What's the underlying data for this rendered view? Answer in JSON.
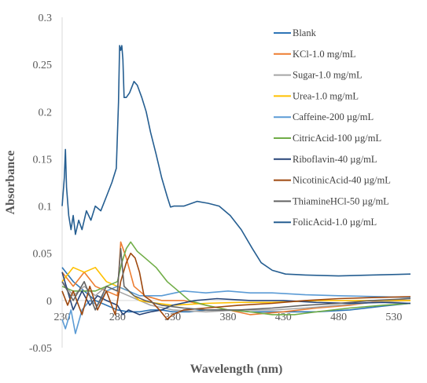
{
  "chart_data": {
    "type": "line",
    "title": "",
    "xlabel": "Wavelength (nm)",
    "ylabel": "Absorbance",
    "xlim": [
      230,
      545
    ],
    "ylim": [
      -0.05,
      0.3
    ],
    "x_ticks": [
      "230",
      "280",
      "330",
      "380",
      "430",
      "480",
      "530"
    ],
    "y_ticks": [
      "-0.05",
      "0",
      "0.05",
      "0.1",
      "0.15",
      "0.2",
      "0.25",
      "0.3"
    ],
    "grid": false,
    "legend_position": "right",
    "series": [
      {
        "name": "Blank",
        "color": "#2E75B6",
        "points": [
          [
            230,
            0.035
          ],
          [
            240,
            0.02
          ],
          [
            250,
            0.01
          ],
          [
            260,
            0.0
          ],
          [
            270,
            -0.005
          ],
          [
            280,
            -0.01
          ],
          [
            290,
            -0.012
          ],
          [
            300,
            -0.012
          ],
          [
            310,
            -0.01
          ],
          [
            320,
            -0.01
          ],
          [
            330,
            -0.012
          ],
          [
            345,
            -0.012
          ],
          [
            360,
            -0.01
          ],
          [
            380,
            -0.01
          ],
          [
            400,
            -0.012
          ],
          [
            430,
            -0.012
          ],
          [
            460,
            -0.012
          ],
          [
            490,
            -0.01
          ],
          [
            520,
            -0.006
          ],
          [
            545,
            -0.003
          ]
        ]
      },
      {
        "name": "KCl-1.0 mg/mL",
        "color": "#ED7D31",
        "points": [
          [
            230,
            0.03
          ],
          [
            240,
            0.015
          ],
          [
            250,
            0.03
          ],
          [
            260,
            0.015
          ],
          [
            270,
            0.01
          ],
          [
            280,
            0.005
          ],
          [
            283,
            0.062
          ],
          [
            288,
            0.045
          ],
          [
            295,
            0.015
          ],
          [
            305,
            0.005
          ],
          [
            320,
            0.0
          ],
          [
            340,
            0.0
          ],
          [
            360,
            -0.005
          ],
          [
            380,
            -0.01
          ],
          [
            400,
            -0.015
          ],
          [
            430,
            -0.012
          ],
          [
            460,
            -0.008
          ],
          [
            490,
            -0.005
          ],
          [
            520,
            0.0
          ],
          [
            545,
            0.002
          ]
        ]
      },
      {
        "name": "Sugar-1.0 mg/mL",
        "color": "#A5A5A5",
        "points": [
          [
            230,
            0.02
          ],
          [
            240,
            0.005
          ],
          [
            250,
            0.015
          ],
          [
            260,
            0.005
          ],
          [
            270,
            0.015
          ],
          [
            280,
            0.01
          ],
          [
            290,
            0.005
          ],
          [
            300,
            0.0
          ],
          [
            310,
            -0.005
          ],
          [
            330,
            -0.01
          ],
          [
            360,
            -0.012
          ],
          [
            390,
            -0.01
          ],
          [
            420,
            -0.01
          ],
          [
            450,
            -0.008
          ],
          [
            480,
            -0.005
          ],
          [
            510,
            -0.002
          ],
          [
            545,
            0.0
          ]
        ]
      },
      {
        "name": "Urea-1.0 mg/mL",
        "color": "#FFC000",
        "points": [
          [
            230,
            0.02
          ],
          [
            240,
            0.035
          ],
          [
            250,
            0.03
          ],
          [
            260,
            0.035
          ],
          [
            270,
            0.02
          ],
          [
            280,
            0.015
          ],
          [
            290,
            0.01
          ],
          [
            300,
            0.0
          ],
          [
            310,
            -0.002
          ],
          [
            330,
            -0.005
          ],
          [
            360,
            -0.003
          ],
          [
            390,
            -0.002
          ],
          [
            420,
            -0.002
          ],
          [
            460,
            0.0
          ],
          [
            500,
            0.0
          ],
          [
            545,
            0.0
          ]
        ]
      },
      {
        "name": "Caffeine-200 µg/mL",
        "color": "#5B9BD5",
        "points": [
          [
            230,
            -0.02
          ],
          [
            233,
            -0.03
          ],
          [
            238,
            -0.01
          ],
          [
            242,
            -0.035
          ],
          [
            248,
            -0.01
          ],
          [
            255,
            0.0
          ],
          [
            262,
            -0.005
          ],
          [
            270,
            0.01
          ],
          [
            280,
            0.015
          ],
          [
            290,
            0.01
          ],
          [
            300,
            0.005
          ],
          [
            320,
            0.005
          ],
          [
            340,
            0.01
          ],
          [
            360,
            0.008
          ],
          [
            380,
            0.01
          ],
          [
            400,
            0.008
          ],
          [
            420,
            0.008
          ],
          [
            450,
            0.006
          ],
          [
            480,
            0.005
          ],
          [
            520,
            0.004
          ],
          [
            545,
            0.003
          ]
        ]
      },
      {
        "name": "CitricAcid-100 µg/mL",
        "color": "#70AD47",
        "points": [
          [
            230,
            0.015
          ],
          [
            240,
            0.01
          ],
          [
            250,
            0.01
          ],
          [
            260,
            0.01
          ],
          [
            270,
            0.015
          ],
          [
            280,
            0.02
          ],
          [
            284,
            0.04
          ],
          [
            288,
            0.055
          ],
          [
            292,
            0.062
          ],
          [
            298,
            0.052
          ],
          [
            305,
            0.045
          ],
          [
            315,
            0.035
          ],
          [
            325,
            0.02
          ],
          [
            335,
            0.01
          ],
          [
            345,
            0.0
          ],
          [
            360,
            -0.005
          ],
          [
            380,
            -0.01
          ],
          [
            400,
            -0.012
          ],
          [
            420,
            -0.015
          ],
          [
            440,
            -0.015
          ],
          [
            460,
            -0.012
          ],
          [
            490,
            -0.008
          ],
          [
            520,
            -0.005
          ],
          [
            545,
            -0.003
          ]
        ]
      },
      {
        "name": "Riboflavin-40 µg/mL",
        "color": "#264478",
        "points": [
          [
            230,
            0.03
          ],
          [
            235,
            0.01
          ],
          [
            240,
            -0.01
          ],
          [
            248,
            0.01
          ],
          [
            255,
            -0.005
          ],
          [
            262,
            0.005
          ],
          [
            270,
            0.0
          ],
          [
            280,
            -0.005
          ],
          [
            285,
            -0.015
          ],
          [
            290,
            -0.01
          ],
          [
            300,
            -0.015
          ],
          [
            310,
            -0.012
          ],
          [
            320,
            -0.01
          ],
          [
            330,
            -0.005
          ],
          [
            350,
            0.0
          ],
          [
            370,
            0.002
          ],
          [
            400,
            0.0
          ],
          [
            430,
            0.0
          ],
          [
            460,
            -0.002
          ],
          [
            490,
            -0.003
          ],
          [
            520,
            -0.002
          ],
          [
            545,
            -0.003
          ]
        ]
      },
      {
        "name": "NicotinicAcid-40 µg/mL",
        "color": "#9E480E",
        "points": [
          [
            230,
            0.01
          ],
          [
            235,
            -0.005
          ],
          [
            240,
            0.01
          ],
          [
            248,
            -0.015
          ],
          [
            255,
            0.015
          ],
          [
            262,
            -0.01
          ],
          [
            270,
            0.01
          ],
          [
            278,
            -0.015
          ],
          [
            283,
            0.02
          ],
          [
            288,
            0.04
          ],
          [
            292,
            0.05
          ],
          [
            296,
            0.045
          ],
          [
            300,
            0.03
          ],
          [
            304,
            0.005
          ],
          [
            310,
            0.0
          ],
          [
            318,
            -0.01
          ],
          [
            325,
            -0.02
          ],
          [
            330,
            -0.015
          ],
          [
            340,
            -0.01
          ],
          [
            360,
            -0.008
          ],
          [
            390,
            -0.005
          ],
          [
            420,
            -0.003
          ],
          [
            450,
            0.0
          ],
          [
            480,
            0.002
          ],
          [
            510,
            0.003
          ],
          [
            545,
            0.004
          ]
        ]
      },
      {
        "name": "ThiamineHCl-50 µg/mL",
        "color": "#636363",
        "points": [
          [
            230,
            0.02
          ],
          [
            240,
            0.0
          ],
          [
            250,
            0.02
          ],
          [
            260,
            -0.01
          ],
          [
            270,
            0.015
          ],
          [
            280,
            0.01
          ],
          [
            283,
            0.055
          ],
          [
            286,
            0.015
          ],
          [
            295,
            0.005
          ],
          [
            305,
            0.0
          ],
          [
            320,
            -0.005
          ],
          [
            340,
            -0.008
          ],
          [
            360,
            -0.01
          ],
          [
            390,
            -0.01
          ],
          [
            420,
            -0.008
          ],
          [
            450,
            -0.005
          ],
          [
            480,
            -0.003
          ],
          [
            510,
            0.0
          ],
          [
            545,
            0.002
          ]
        ]
      },
      {
        "name": "FolicAcid-1.0 µg/mL",
        "color": "#255E91",
        "points": [
          [
            230,
            0.1
          ],
          [
            232,
            0.13
          ],
          [
            233,
            0.16
          ],
          [
            234,
            0.12
          ],
          [
            236,
            0.09
          ],
          [
            238,
            0.075
          ],
          [
            240,
            0.09
          ],
          [
            242,
            0.07
          ],
          [
            245,
            0.085
          ],
          [
            248,
            0.075
          ],
          [
            252,
            0.095
          ],
          [
            256,
            0.085
          ],
          [
            260,
            0.1
          ],
          [
            265,
            0.095
          ],
          [
            270,
            0.11
          ],
          [
            275,
            0.125
          ],
          [
            279,
            0.14
          ],
          [
            281,
            0.21
          ],
          [
            282,
            0.27
          ],
          [
            283,
            0.265
          ],
          [
            284,
            0.27
          ],
          [
            285,
            0.255
          ],
          [
            286,
            0.215
          ],
          [
            288,
            0.215
          ],
          [
            291,
            0.22
          ],
          [
            295,
            0.232
          ],
          [
            298,
            0.228
          ],
          [
            302,
            0.215
          ],
          [
            306,
            0.2
          ],
          [
            310,
            0.178
          ],
          [
            315,
            0.155
          ],
          [
            320,
            0.13
          ],
          [
            325,
            0.11
          ],
          [
            328,
            0.099
          ],
          [
            331,
            0.1
          ],
          [
            340,
            0.1
          ],
          [
            352,
            0.105
          ],
          [
            362,
            0.103
          ],
          [
            372,
            0.1
          ],
          [
            382,
            0.09
          ],
          [
            392,
            0.075
          ],
          [
            402,
            0.055
          ],
          [
            410,
            0.04
          ],
          [
            420,
            0.032
          ],
          [
            432,
            0.028
          ],
          [
            450,
            0.027
          ],
          [
            480,
            0.026
          ],
          [
            510,
            0.027
          ],
          [
            545,
            0.028
          ]
        ]
      }
    ]
  }
}
